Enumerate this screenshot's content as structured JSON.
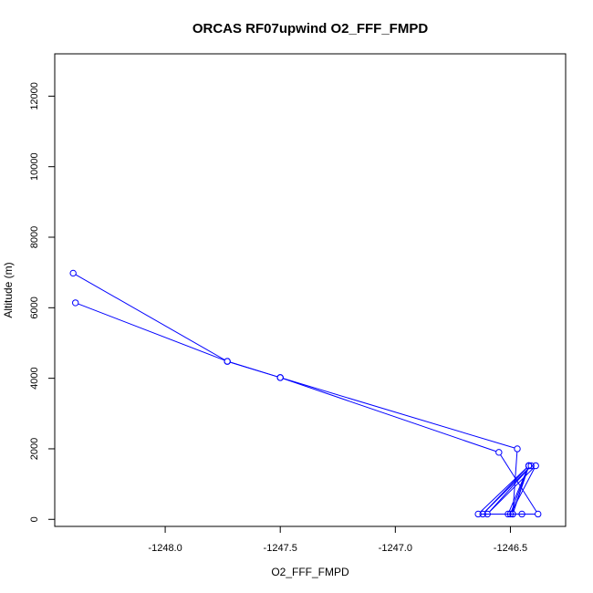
{
  "chart_data": {
    "type": "line",
    "title": "ORCAS RF07upwind O2_FFF_FMPD",
    "xlabel": "O2_FFF_FMPD",
    "ylabel": "Altitude (m)",
    "xlim": [
      -1248.48,
      -1246.26
    ],
    "ylim": [
      -200,
      13200
    ],
    "x_ticks": [
      -1248.0,
      -1247.5,
      -1247.0,
      -1246.5
    ],
    "x_tick_labels": [
      "-1248.0",
      "-1247.5",
      "-1247.0",
      "-1246.5"
    ],
    "y_ticks": [
      0,
      2000,
      4000,
      6000,
      8000,
      10000,
      12000
    ],
    "y_tick_labels": [
      "0",
      "2000",
      "4000",
      "6000",
      "8000",
      "10000",
      "12000"
    ],
    "grid": false,
    "colors": {
      "series": "#0000ff",
      "frame": "#000000",
      "background": "#ffffff"
    },
    "series": [
      {
        "marker": "open-circle",
        "x": [
          -1248.4,
          -1247.73,
          -1247.5,
          -1246.47,
          -1246.49,
          -1246.42,
          -1246.62,
          -1246.41,
          -1246.6,
          -1246.39,
          -1246.5,
          -1246.42,
          -1246.51,
          -1246.45,
          -1246.49,
          -1246.42,
          -1246.64,
          -1246.38,
          -1246.55,
          -1247.5,
          -1247.73,
          -1248.39
        ],
        "y": [
          6980,
          4480,
          4020,
          2000,
          150,
          1520,
          150,
          1520,
          150,
          1520,
          150,
          1520,
          150,
          150,
          150,
          1520,
          150,
          150,
          1900,
          4020,
          4480,
          6140
        ]
      }
    ]
  }
}
